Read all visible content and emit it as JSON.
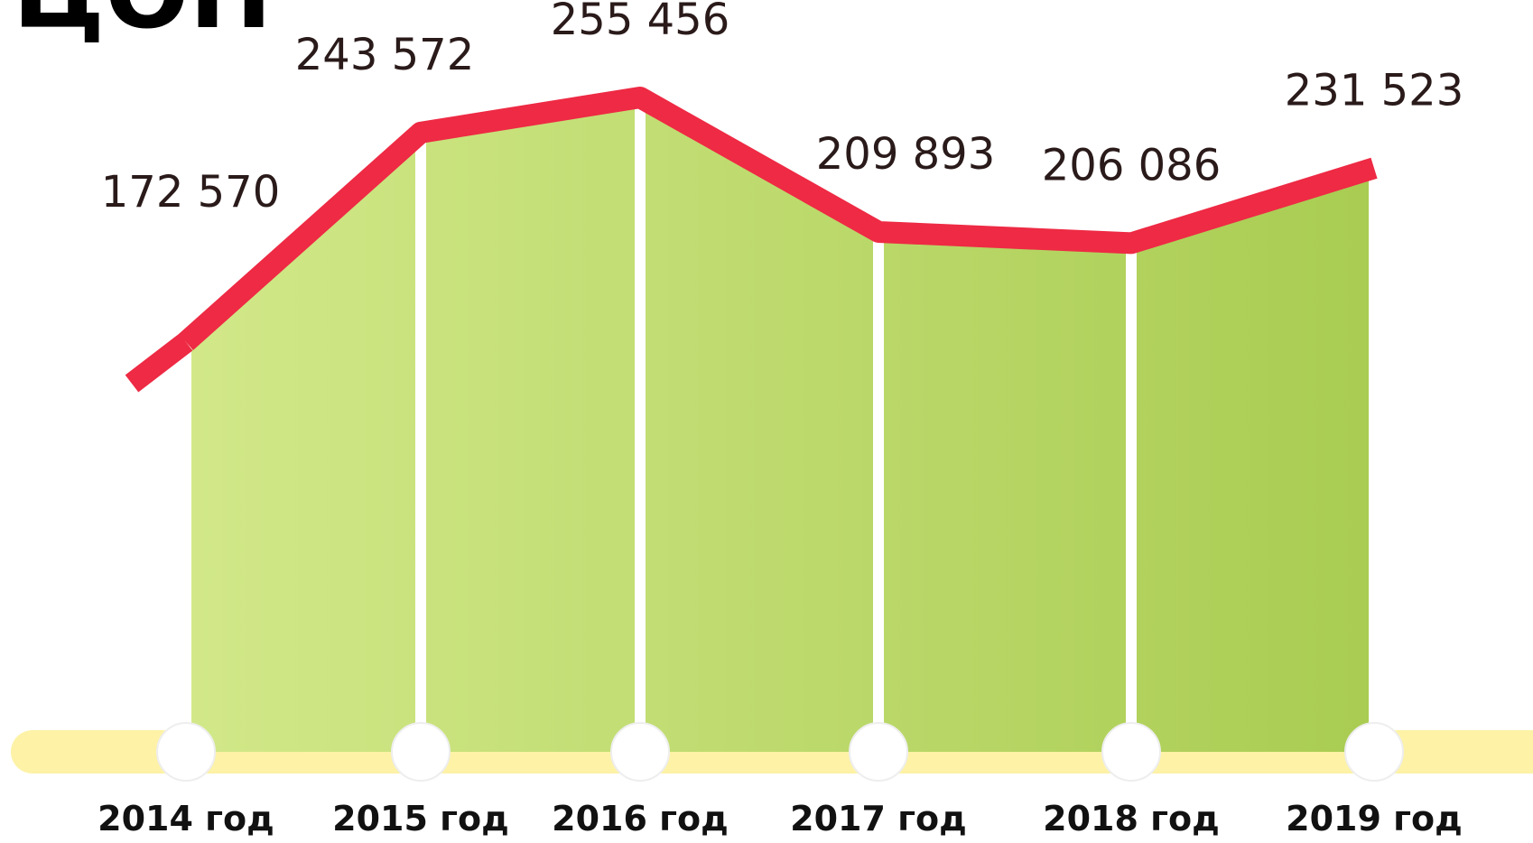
{
  "chart_data": {
    "type": "area",
    "title": "ЦОН",
    "categories": [
      "2014 год",
      "2015 год",
      "2016 год",
      "2017 год",
      "2018 год",
      "2019 год"
    ],
    "values": [
      172570,
      243572,
      255456,
      209893,
      206086,
      231523
    ],
    "value_labels": [
      "172 570",
      "243 572",
      "255 456",
      "209 893",
      "206 086",
      "231 523"
    ],
    "color": "#ee2a44",
    "fill_colors": [
      "#d2e889",
      "#a9cc52"
    ]
  }
}
